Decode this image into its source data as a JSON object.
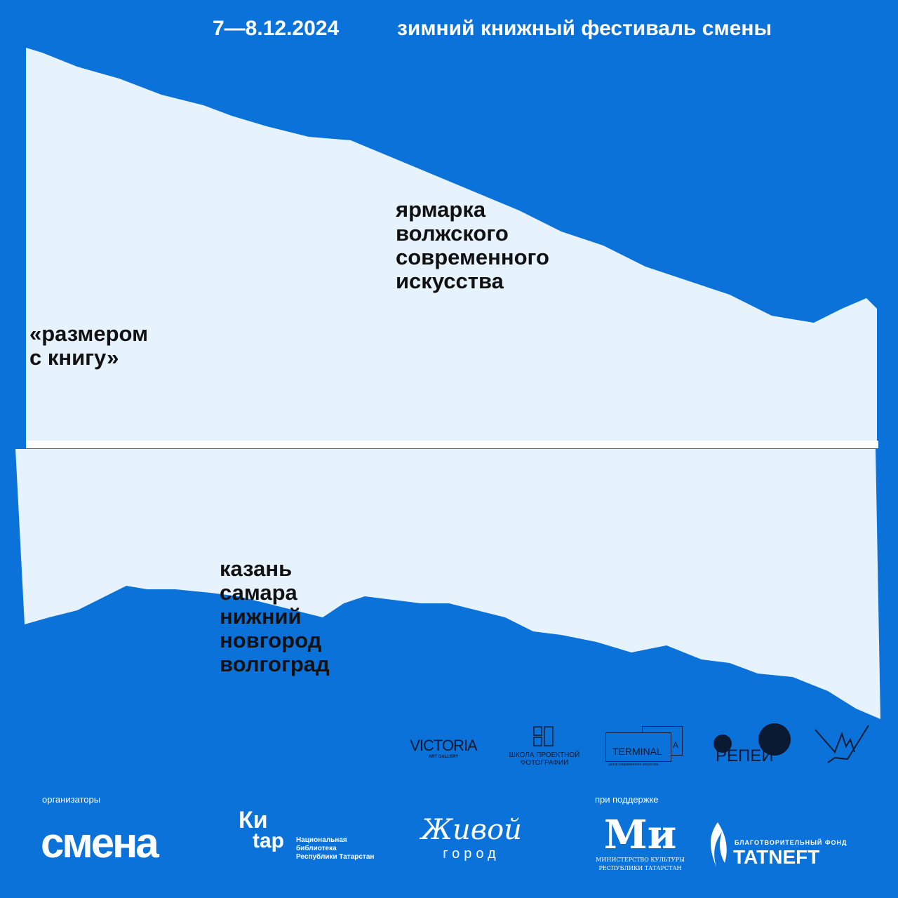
{
  "header": {
    "dates": "7—8.12.2024",
    "title": "зимний книжный фестиваль смены"
  },
  "main": {
    "fair_lines": [
      "ярмарка",
      "волжского",
      "современного",
      "искусства"
    ],
    "project_lines": [
      "«размером",
      "с книгу»"
    ],
    "cities": [
      "казань",
      "самара",
      "нижний",
      "новгород",
      "волгоград"
    ]
  },
  "partners": {
    "victoria": "VICTORIA",
    "victoria_sub": "ART GALLERY",
    "school": "ШКОЛА ПРОЕКТНОЙ ФОТОГРАФИИ",
    "terminal": "TERMINAL",
    "terminal_a": "A",
    "terminal_sub": "центр современного искусства",
    "repey": "РЕПЕЙ"
  },
  "footer": {
    "organizers_label": "организаторы",
    "support_label": "при поддержке",
    "smena": "смена",
    "kitap_top": "Ки",
    "kitap_bottom": "tap",
    "library": [
      "Национальная",
      "библиотека",
      "Республики Татарстан"
    ],
    "zhivoy": "Живой",
    "gorod": "город",
    "ministry": [
      "МИНИСТЕРСТВО КУЛЬТУРЫ",
      "РЕСПУБЛИКИ ТАТАРСТАН"
    ],
    "fund": "БЛАГОТВОРИТЕЛЬНЫЙ ФОНД",
    "tatneft": "TATNEFT"
  },
  "colors": {
    "background": "#0b72d9",
    "paper": "#e6f2fc",
    "text": "#111111"
  }
}
